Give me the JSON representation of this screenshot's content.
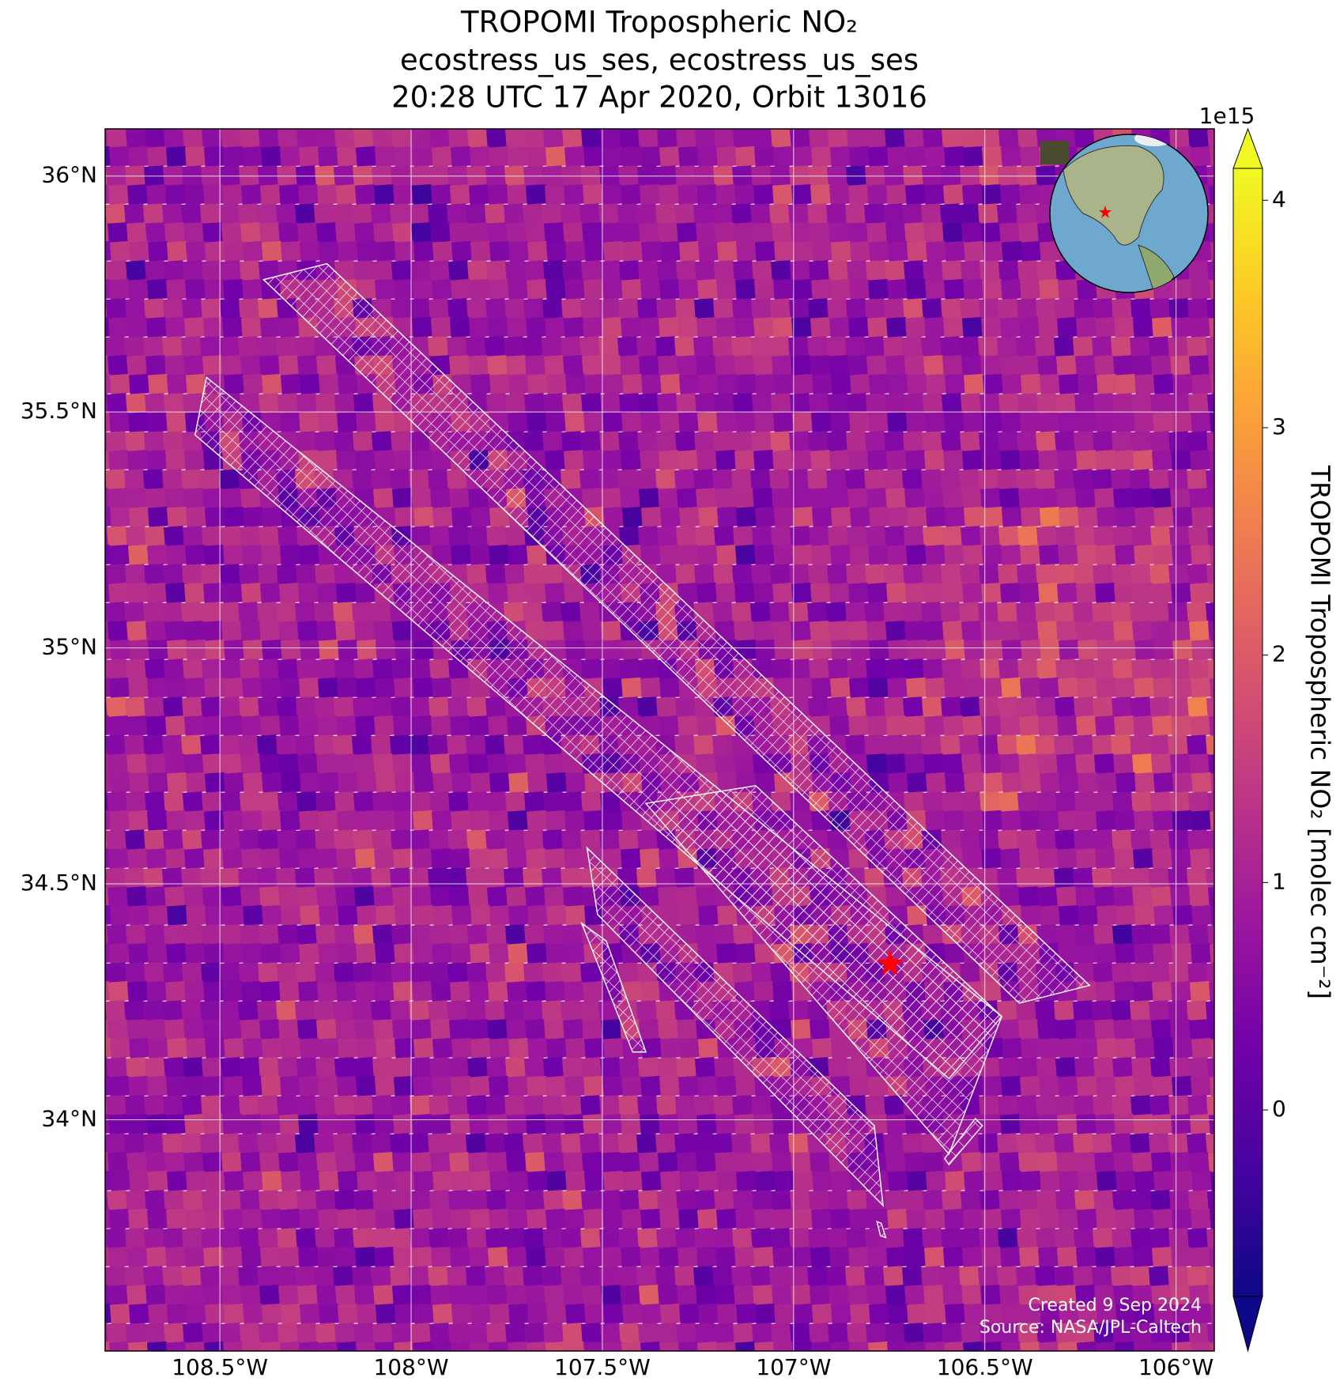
{
  "chart_data": {
    "type": "map",
    "title": [
      "TROPOMI Tropospheric NO₂",
      "ecostress_us_ses, ecostress_us_ses",
      "20:28 UTC 17 Apr 2020, Orbit 13016"
    ],
    "xlim": [
      -108.8,
      -105.9
    ],
    "ylim": [
      33.51,
      36.1
    ],
    "xticks": [
      {
        "value": -108.5,
        "label": "108.5°W"
      },
      {
        "value": -108,
        "label": "108°W"
      },
      {
        "value": -107.5,
        "label": "107.5°W"
      },
      {
        "value": -107,
        "label": "107°W"
      },
      {
        "value": -106.5,
        "label": "106.5°W"
      },
      {
        "value": -106,
        "label": "106°W"
      }
    ],
    "yticks": [
      {
        "value": 34,
        "label": "34°N"
      },
      {
        "value": 34.5,
        "label": "34.5°N"
      },
      {
        "value": 35,
        "label": "35°N"
      },
      {
        "value": 35.5,
        "label": "35.5°N"
      },
      {
        "value": 36,
        "label": "36°N"
      }
    ],
    "grid": true,
    "colorbar": {
      "label": "TROPOMI Tropospheric NO₂ [molec cm⁻²]",
      "offset_label": "1e15",
      "lim": [
        -0.82,
        4.14
      ],
      "ticks": [
        0,
        1,
        2,
        3,
        4
      ],
      "colormap": [
        "#0d0887",
        "#46039f",
        "#7201a8",
        "#9c179e",
        "#bd3786",
        "#d8576b",
        "#ed7953",
        "#fb9f3a",
        "#fdca26",
        "#f0f921"
      ]
    },
    "annotations": [
      "Created 9 Sep 2024",
      "Source: NASA/JPL-Caltech"
    ]
  }
}
